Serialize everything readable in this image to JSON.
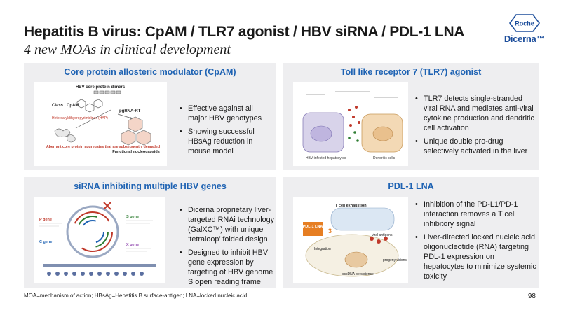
{
  "header": {
    "title": "Hepatitis B virus: CpAM / TLR7 agonist / HBV siRNA / PDL-1 LNA",
    "subtitle": "4 new MOAs in clinical development"
  },
  "logos": {
    "roche": "Roche",
    "dicerna": "Dicerna™"
  },
  "panels": [
    {
      "title": "Core protein allosteric modulator (CpAM)",
      "bullets": [
        "Effective against all major HBV genotypes",
        "Showing successful HBsAg reduction in mouse model"
      ],
      "figure_labels": {
        "dimers": "HBV core protein dimers",
        "class": "Class I CpAM",
        "pgrna": "pgRNA-RT",
        "hetero": "Heteroaryldihydropyrimidines (HAP)",
        "aberrant": "Aberrant core protein aggregates that are subsequently degraded",
        "functional": "Functional nucleocapsids"
      }
    },
    {
      "title": "Toll like receptor 7 (TLR7) agonist",
      "bullets": [
        "TLR7 detects single-stranded viral RNA and mediates anti-viral cytokine production and dendritic cell activation",
        "Unique double pro-drug selectively activated in the liver"
      ],
      "figure_labels": {
        "left": "HBV infected hepatocytes",
        "right": "Dendritic cells"
      }
    },
    {
      "title": "siRNA inhibiting multiple HBV genes",
      "bullets": [
        "Dicerna proprietary liver-targeted RNAi technology (GalXC™) with unique ‘tetraloop’ folded design",
        "Designed to inhibit HBV gene expression by targeting of HBV genome S open reading frame"
      ],
      "figure_labels": {
        "p": "P gene",
        "s": "S gene",
        "x": "X gene",
        "c": "C gene"
      }
    },
    {
      "title": "PDL-1 LNA",
      "bullets": [
        "Inhibition of the PD-L1/PD-1 interaction removes a T cell inhibitory signal",
        "Liver-directed locked nucleic acid oligonucleotide (RNA) targeting PDL-1 expression on hepatocytes to minimize systemic toxicity"
      ],
      "figure_labels": {
        "exhaustion": "T cell exhaustion",
        "lna": "PDL-1 LNA",
        "integration": "Integration",
        "antigens": "viral antigens",
        "progeny": "progeny virions",
        "cccdna": "cccDNA persistence",
        "step": "3"
      }
    }
  ],
  "footnote": "MOA=mechanism of action; HBsAg=Hepatitis B surface-antigen; LNA=locked nucleic acid",
  "page_number": "98",
  "colors": {
    "accent": "#1f63b3",
    "panel_bg": "#eeeef0",
    "dicerna": "#1e4f9c"
  }
}
